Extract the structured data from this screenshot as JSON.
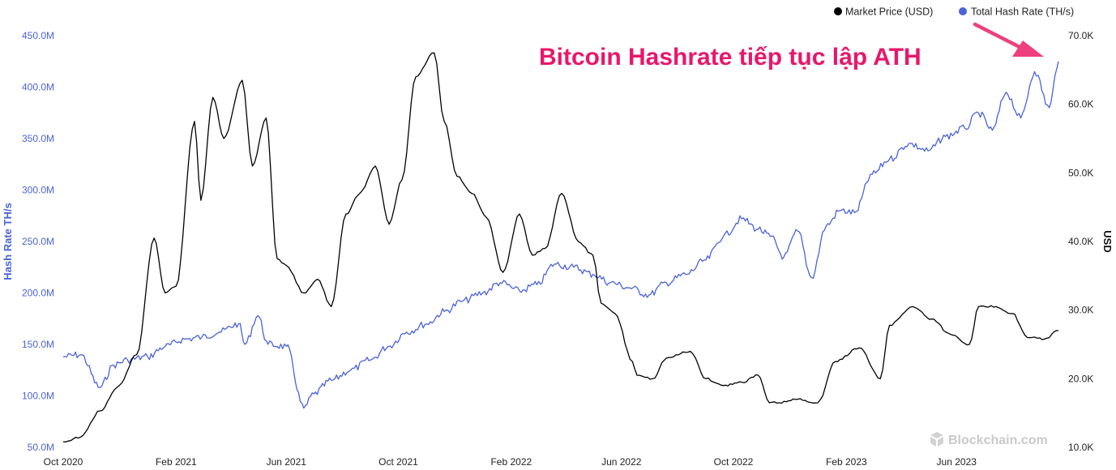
{
  "chart_data": {
    "type": "line",
    "title": "Bitcoin Hashrate tiếp tục lập ATH",
    "ylabel": "Hash Rate TH/s",
    "y2label": "USD",
    "ylim": [
      50000000,
      450000000
    ],
    "y2lim": [
      10000,
      70000
    ],
    "x_tick_labels": [
      "Oct 2020",
      "Feb 2021",
      "Jun 2021",
      "Oct 2021",
      "Feb 2022",
      "Jun 2022",
      "Oct 2022",
      "Feb 2023",
      "Jun 2023"
    ],
    "y_tick_labels": [
      "50.0M",
      "100.0M",
      "150.0M",
      "200.0M",
      "250.0M",
      "300.0M",
      "350.0M",
      "400.0M",
      "450.0M"
    ],
    "y2_tick_labels": [
      "10.0K",
      "20.0K",
      "30.0K",
      "40.0K",
      "50.0K",
      "60.0K",
      "70.0K"
    ],
    "legend_position": "top-right",
    "grid": false,
    "watermark": "Blockchain.com",
    "series": [
      {
        "name": "Market Price (USD)",
        "axis": "right",
        "color": "#000000",
        "x": [
          "2020-10-01",
          "2020-10-20",
          "2020-11-10",
          "2020-12-01",
          "2020-12-20",
          "2021-01-08",
          "2021-01-20",
          "2021-02-01",
          "2021-02-21",
          "2021-02-28",
          "2021-03-13",
          "2021-03-25",
          "2021-04-14",
          "2021-04-25",
          "2021-05-10",
          "2021-05-22",
          "2021-06-01",
          "2021-06-20",
          "2021-07-05",
          "2021-07-20",
          "2021-08-05",
          "2021-08-20",
          "2021-09-06",
          "2021-09-21",
          "2021-10-05",
          "2021-10-20",
          "2021-11-09",
          "2021-11-20",
          "2021-12-04",
          "2021-12-20",
          "2022-01-05",
          "2022-01-23",
          "2022-02-10",
          "2022-02-24",
          "2022-03-10",
          "2022-03-28",
          "2022-04-15",
          "2022-05-01",
          "2022-05-10",
          "2022-05-25",
          "2022-06-13",
          "2022-06-18",
          "2022-07-05",
          "2022-07-20",
          "2022-08-15",
          "2022-09-01",
          "2022-09-20",
          "2022-10-10",
          "2022-10-28",
          "2022-11-09",
          "2022-11-20",
          "2022-12-10",
          "2023-01-01",
          "2023-01-20",
          "2023-02-15",
          "2023-03-10",
          "2023-03-20",
          "2023-04-14",
          "2023-05-05",
          "2023-05-25",
          "2023-06-15",
          "2023-06-25",
          "2023-07-14",
          "2023-08-01",
          "2023-08-17",
          "2023-09-05",
          "2023-09-20"
        ],
        "y": [
          10800,
          11500,
          15300,
          19000,
          23500,
          40500,
          32500,
          33500,
          57500,
          46000,
          61000,
          55000,
          63500,
          51000,
          58000,
          37500,
          36500,
          32500,
          34500,
          30500,
          44000,
          47000,
          51000,
          42500,
          49000,
          64000,
          67500,
          57500,
          49500,
          47000,
          43500,
          35500,
          44000,
          38000,
          39000,
          47000,
          40000,
          38000,
          31000,
          29500,
          22500,
          20500,
          20000,
          23000,
          24000,
          20000,
          19000,
          19500,
          20500,
          16500,
          16500,
          17000,
          16500,
          22500,
          24500,
          20000,
          27800,
          30500,
          28700,
          26500,
          25000,
          30500,
          30500,
          29500,
          26000,
          25800,
          27000
        ]
      },
      {
        "name": "Total Hash Rate (TH/s)",
        "axis": "left",
        "color": "#4a63d6",
        "x": [
          "2020-10-01",
          "2020-10-20",
          "2020-11-10",
          "2020-11-25",
          "2020-12-10",
          "2021-01-01",
          "2021-01-20",
          "2021-02-10",
          "2021-03-01",
          "2021-03-20",
          "2021-04-10",
          "2021-04-17",
          "2021-05-01",
          "2021-05-12",
          "2021-06-01",
          "2021-06-20",
          "2021-07-01",
          "2021-07-20",
          "2021-08-10",
          "2021-09-01",
          "2021-09-20",
          "2021-10-10",
          "2021-11-01",
          "2021-11-20",
          "2021-12-10",
          "2022-01-01",
          "2022-01-20",
          "2022-02-10",
          "2022-03-01",
          "2022-03-20",
          "2022-04-10",
          "2022-05-01",
          "2022-05-20",
          "2022-06-10",
          "2022-07-01",
          "2022-07-20",
          "2022-08-10",
          "2022-09-01",
          "2022-09-20",
          "2022-10-10",
          "2022-10-28",
          "2022-11-10",
          "2022-11-25",
          "2022-12-10",
          "2022-12-25",
          "2023-01-10",
          "2023-01-25",
          "2023-02-10",
          "2023-03-01",
          "2023-03-20",
          "2023-04-10",
          "2023-05-01",
          "2023-05-20",
          "2023-06-10",
          "2023-06-25",
          "2023-07-10",
          "2023-07-25",
          "2023-08-10",
          "2023-08-25",
          "2023-09-10",
          "2023-09-20"
        ],
        "y": [
          138000000,
          140000000,
          108000000,
          130000000,
          135000000,
          138000000,
          148000000,
          155000000,
          157000000,
          162000000,
          170000000,
          150000000,
          178000000,
          150000000,
          148000000,
          88000000,
          102000000,
          115000000,
          125000000,
          135000000,
          148000000,
          162000000,
          170000000,
          182000000,
          192000000,
          200000000,
          210000000,
          202000000,
          208000000,
          228000000,
          225000000,
          218000000,
          210000000,
          205000000,
          198000000,
          210000000,
          218000000,
          232000000,
          255000000,
          272000000,
          262000000,
          255000000,
          235000000,
          260000000,
          215000000,
          265000000,
          280000000,
          278000000,
          315000000,
          330000000,
          345000000,
          338000000,
          352000000,
          360000000,
          375000000,
          358000000,
          395000000,
          370000000,
          415000000,
          380000000,
          425000000
        ]
      }
    ]
  },
  "legend": {
    "price_label": "Market Price (USD)",
    "hash_label": "Total Hash Rate (TH/s)"
  },
  "colors": {
    "price": "#000000",
    "hashrate": "#4a63d6",
    "headline": "#e8176b"
  }
}
